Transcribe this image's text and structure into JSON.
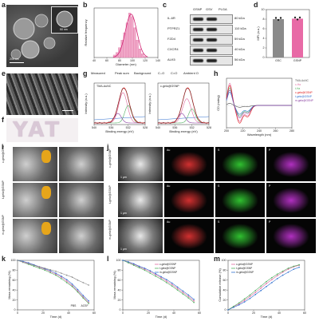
{
  "panel_labels": [
    "a",
    "b",
    "c",
    "d",
    "e",
    "f",
    "g",
    "h",
    "i",
    "j",
    "k",
    "l",
    "m"
  ],
  "panel_a": {
    "scale_main": "200 nm",
    "scale_inset": "50 nm"
  },
  "panel_b": {
    "chart_data": {
      "type": "bar",
      "xlabel": "Diameter (nm)",
      "ylabel": "Relative frequency",
      "x_ticks": [
        "40",
        "60",
        "80",
        "100",
        "120",
        "140"
      ],
      "xlim": [
        40,
        140
      ],
      "bins": [
        72,
        76,
        80,
        84,
        88,
        92,
        96,
        100,
        104,
        108,
        112,
        116,
        120
      ],
      "values": [
        0.02,
        0.04,
        0.08,
        0.14,
        0.2,
        0.28,
        0.36,
        0.33,
        0.24,
        0.14,
        0.07,
        0.03,
        0.01
      ],
      "fit": "gaussian"
    }
  },
  "panel_c": {
    "columns": [
      "GSNP",
      "GSV",
      "PLGA"
    ],
    "rows": [
      {
        "protein": "IL-6R",
        "size": "80 kDa"
      },
      {
        "protein": "PTPRZ1",
        "size": "110 kDa"
      },
      {
        "protein": "FZD4",
        "size": "59 kDa"
      },
      {
        "protein": "CXCR4",
        "size": "40 kDa"
      },
      {
        "protein": "ALK5",
        "size": "56 kDa"
      }
    ]
  },
  "panel_d": {
    "chart_data": {
      "type": "bar",
      "categories": [
        "GSC",
        "GSNP"
      ],
      "values": [
        8.0,
        8.1
      ],
      "ylabel": "MFI (a.u.)",
      "y_ticks": [
        "0",
        "2",
        "4",
        "6",
        "8",
        "10"
      ],
      "ylim": [
        0,
        10
      ],
      "colors": [
        "#8a8a8a",
        "#e86aa6"
      ]
    }
  },
  "panel_e": {
    "scale": "20 μm"
  },
  "panel_f": {
    "text": "YAT"
  },
  "panel_g": {
    "legend": [
      "Measured",
      "Peak sum",
      "Background",
      "C–O",
      "C=O",
      "Ambient O"
    ],
    "legend_colors": [
      "#333333",
      "#e02020",
      "#3070d0",
      "#e06aa0",
      "#50b060",
      "#8a40a0"
    ],
    "charts": [
      {
        "title": "TMA-AuNC",
        "xlabel": "Binding energy (eV)",
        "ylabel": "Intensity (a.u.)",
        "x_ticks": [
          "540",
          "536",
          "532",
          "528"
        ]
      },
      {
        "title": "c-gelα@GSNP",
        "xlabel": "Binding energy (eV)",
        "ylabel": "Intensity (a.u.)",
        "x_ticks": [
          "540",
          "536",
          "532",
          "528"
        ]
      }
    ]
  },
  "panel_h": {
    "chart_data": {
      "type": "line",
      "xlabel": "Wavelength (nm)",
      "ylabel": "CD (mdeg)",
      "x_ticks": [
        "200",
        "220",
        "240",
        "260",
        "280"
      ],
      "xlim": [
        195,
        290
      ],
      "series": [
        {
          "name": "TMA-AuNC",
          "color": "#555555"
        },
        {
          "name": "c-Ha",
          "color": "#e06aa0"
        },
        {
          "name": "t-Ha",
          "color": "#50b060"
        },
        {
          "name": "c-gelα@GSNP",
          "color": "#e02020"
        },
        {
          "name": "t-gelα@GSNP",
          "color": "#3070d0"
        },
        {
          "name": "m-gelα@GSNP",
          "color": "#8a40a0"
        }
      ]
    }
  },
  "panel_i": {
    "rows": [
      "c-gelα@GSNP",
      "t-gelα@GSNP",
      "m-gelα@GSNP"
    ]
  },
  "panel_j": {
    "rows": [
      "c-gelα@GSNP",
      "t-gelα@GSNP",
      "m-gelα@GSNP"
    ],
    "channels": [
      "Au",
      "S",
      "P"
    ],
    "channel_colors": [
      "#d03030",
      "#30c030",
      "#b030c0"
    ],
    "scale": "1 μm"
  },
  "panel_k": {
    "chart_data": {
      "type": "line",
      "xlabel": "Time (d)",
      "ylabel": "Mass remaining (%)",
      "x_ticks": [
        "0",
        "20",
        "40",
        "60"
      ],
      "y_ticks": [
        "0",
        "20",
        "40",
        "60",
        "80",
        "100"
      ],
      "xlim": [
        0,
        70
      ],
      "ylim": [
        0,
        100
      ],
      "legend_groups": [
        "PBS",
        "ACSF"
      ],
      "x": [
        0,
        5,
        10,
        15,
        20,
        25,
        30,
        35,
        40,
        45,
        50,
        55,
        60,
        65
      ],
      "series": [
        {
          "name": "c-gelα@GSNP (PBS)",
          "color": "#e06aa0",
          "values": [
            100,
            97,
            94,
            90,
            86,
            82,
            77,
            72,
            66,
            58,
            49,
            38,
            26,
            15
          ]
        },
        {
          "name": "t-gelα@GSNP (PBS)",
          "color": "#50b060",
          "values": [
            100,
            96,
            92,
            88,
            84,
            80,
            75,
            70,
            63,
            55,
            47,
            36,
            24,
            13
          ]
        },
        {
          "name": "m-gelα@GSNP (PBS)",
          "color": "#3070d0",
          "values": [
            100,
            98,
            95,
            91,
            87,
            83,
            79,
            74,
            68,
            61,
            52,
            41,
            29,
            18
          ]
        },
        {
          "name": "c-gelα@GSNP (ACSF)",
          "color": "#8a8a8a",
          "values": [
            100,
            96,
            93,
            90,
            87,
            84,
            81,
            78,
            74,
            70,
            66,
            60,
            55,
            50
          ]
        }
      ]
    }
  },
  "panel_l": {
    "chart_data": {
      "type": "line",
      "xlabel": "Time (d)",
      "ylabel": "Mass remaining (%)",
      "x_ticks": [
        "0",
        "20",
        "40",
        "60"
      ],
      "y_ticks": [
        "0",
        "20",
        "40",
        "60",
        "80",
        "100"
      ],
      "xlim": [
        0,
        70
      ],
      "ylim": [
        0,
        100
      ],
      "x": [
        0,
        5,
        10,
        15,
        20,
        25,
        30,
        35,
        40,
        45,
        50,
        55,
        60,
        65
      ],
      "series": [
        {
          "name": "c-gelα@GSNP",
          "color": "#e06aa0",
          "values": [
            100,
            96,
            92,
            87,
            82,
            77,
            71,
            65,
            58,
            51,
            43,
            35,
            27,
            18
          ]
        },
        {
          "name": "t-gelα@GSNP",
          "color": "#50b060",
          "values": [
            100,
            95,
            90,
            85,
            80,
            74,
            68,
            62,
            55,
            48,
            40,
            32,
            24,
            15
          ]
        },
        {
          "name": "m-gelα@GSNP",
          "color": "#3070d0",
          "values": [
            100,
            97,
            93,
            88,
            84,
            79,
            73,
            67,
            61,
            54,
            46,
            38,
            30,
            21
          ]
        }
      ]
    }
  },
  "panel_m": {
    "chart_data": {
      "type": "line",
      "xlabel": "Time (d)",
      "ylabel": "Cumulative release (%)",
      "x_ticks": [
        "0",
        "20",
        "40",
        "60"
      ],
      "y_ticks": [
        "0",
        "20",
        "40",
        "60",
        "80",
        "100"
      ],
      "xlim": [
        0,
        70
      ],
      "ylim": [
        0,
        100
      ],
      "x": [
        0,
        5,
        10,
        15,
        20,
        25,
        30,
        35,
        40,
        45,
        50,
        55,
        60,
        65
      ],
      "series": [
        {
          "name": "c-gelα@GSNP",
          "color": "#e06aa0",
          "values": [
            0,
            6,
            12,
            19,
            27,
            35,
            44,
            53,
            61,
            69,
            76,
            82,
            87,
            90
          ]
        },
        {
          "name": "t-gelα@GSNP",
          "color": "#50b060",
          "values": [
            0,
            7,
            14,
            22,
            30,
            39,
            48,
            57,
            65,
            72,
            78,
            84,
            88,
            91
          ]
        },
        {
          "name": "m-gelα@GSNP",
          "color": "#3070d0",
          "values": [
            0,
            5,
            10,
            16,
            23,
            31,
            39,
            47,
            55,
            63,
            70,
            76,
            82,
            86
          ]
        }
      ],
      "inset": {
        "xlabel": "Time (d)",
        "ylabel": "Cumulative release (%)"
      }
    }
  }
}
